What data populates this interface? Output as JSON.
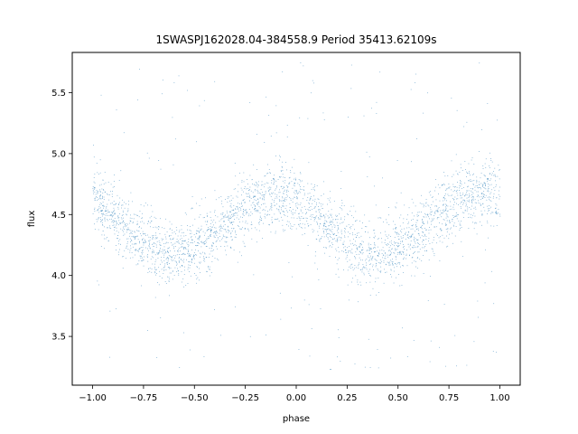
{
  "chart_data": {
    "type": "scatter",
    "title": "1SWASPJ162028.04-384558.9 Period 35413.62109s",
    "xlabel": "phase",
    "ylabel": "flux",
    "xlim": [
      -1.1,
      1.1
    ],
    "ylim": [
      3.1,
      5.83
    ],
    "xticks": [
      -1.0,
      -0.75,
      -0.5,
      -0.25,
      0.0,
      0.25,
      0.5,
      0.75,
      1.0
    ],
    "xtick_labels": [
      "−1.00",
      "−0.75",
      "−0.50",
      "−0.25",
      "0.00",
      "0.25",
      "0.50",
      "0.75",
      "1.00"
    ],
    "yticks": [
      3.5,
      4.0,
      4.5,
      5.0,
      5.5
    ],
    "ytick_labels": [
      "3.5",
      "4.0",
      "4.5",
      "5.0",
      "5.5"
    ],
    "grid": false,
    "point_color": "#1f77b4",
    "phase_range": [
      -1.0,
      1.0
    ],
    "model": {
      "mean_flux": 4.42,
      "amplitude": 0.24,
      "min_phase": -0.6,
      "period_in_phase": 1.0,
      "scatter_sigma": 0.13,
      "outlier_fraction": 0.06,
      "outlier_flux_range": [
        3.2,
        5.75
      ],
      "n_points": 11000
    }
  }
}
